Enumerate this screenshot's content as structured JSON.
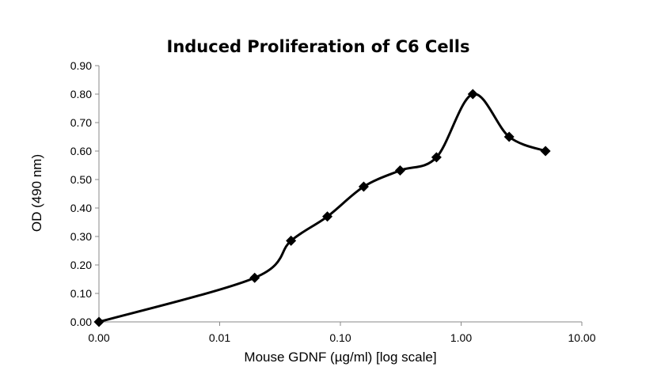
{
  "chart_data": {
    "type": "scatter",
    "title": "Induced Proliferation of C6 Cells",
    "xlabel": "Mouse GDNF (µg/ml) [log scale]",
    "ylabel": "OD (490 nm)",
    "x_scale": "log",
    "x_ticks": [
      "0.00",
      "0.01",
      "0.10",
      "1.00",
      "10.00"
    ],
    "y_ticks": [
      "0.00",
      "0.10",
      "0.20",
      "0.30",
      "0.40",
      "0.50",
      "0.60",
      "0.70",
      "0.80",
      "0.90"
    ],
    "ylim": [
      0,
      0.9
    ],
    "grid": false,
    "legend": "none",
    "line": "smoothed",
    "marker": "diamond",
    "color": "#000000",
    "series": [
      {
        "x": [
          0.001,
          0.0195,
          0.039,
          0.078,
          0.156,
          0.3125,
          0.625,
          1.25,
          2.5,
          5.0
        ],
        "y": [
          0.0,
          0.155,
          0.285,
          0.37,
          0.475,
          0.532,
          0.578,
          0.8,
          0.65,
          0.6
        ]
      }
    ]
  }
}
